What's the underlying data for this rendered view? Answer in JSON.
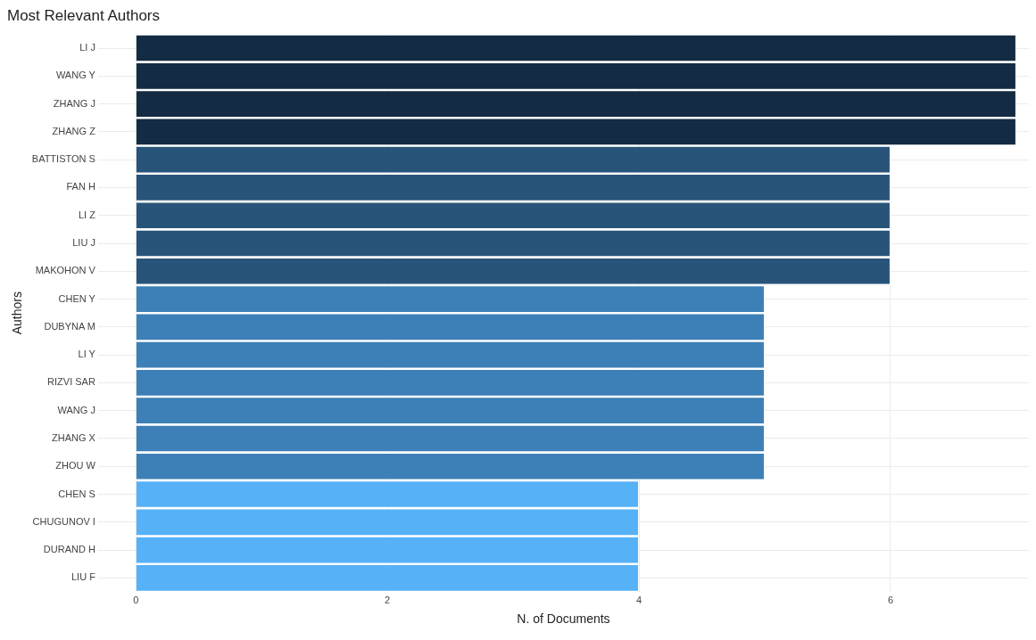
{
  "chart_data": {
    "type": "bar",
    "orientation": "horizontal",
    "title": "Most Relevant Authors",
    "xlabel": "N. of Documents",
    "ylabel": "Authors",
    "categories": [
      "LI J",
      "WANG Y",
      "ZHANG J",
      "ZHANG Z",
      "BATTISTON S",
      "FAN H",
      "LI Z",
      "LIU J",
      "MAKOHON V",
      "CHEN Y",
      "DUBYNA M",
      "LI Y",
      "RIZVI SAR",
      "WANG J",
      "ZHANG X",
      "ZHOU W",
      "CHEN S",
      "CHUGUNOV I",
      "DURAND H",
      "LIU F"
    ],
    "values": [
      7,
      7,
      7,
      7,
      6,
      6,
      6,
      6,
      6,
      5,
      5,
      5,
      5,
      5,
      5,
      5,
      4,
      4,
      4,
      4
    ],
    "colors": [
      "#132b43",
      "#132b43",
      "#132b43",
      "#132b43",
      "#28547a",
      "#28547a",
      "#28547a",
      "#28547a",
      "#28547a",
      "#3d80b7",
      "#3d80b7",
      "#3d80b7",
      "#3d80b7",
      "#3d80b7",
      "#3d80b7",
      "#3d80b7",
      "#56b1f7",
      "#56b1f7",
      "#56b1f7",
      "#56b1f7"
    ],
    "xlim": [
      -0.3,
      7.1
    ],
    "xticks": [
      0,
      2,
      4,
      6
    ],
    "grid": true,
    "legend": false
  }
}
